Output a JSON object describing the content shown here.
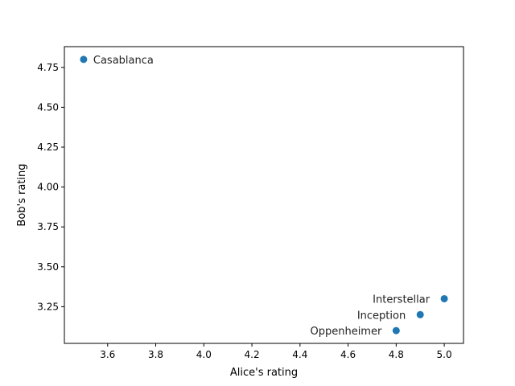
{
  "chart_data": {
    "type": "scatter",
    "xlabel": "Alice's rating",
    "ylabel": "Bob's rating",
    "xlim": [
      3.42,
      5.08
    ],
    "ylim": [
      3.02,
      4.88
    ],
    "xticks": [
      "3.6",
      "3.8",
      "4.0",
      "4.2",
      "4.4",
      "4.6",
      "4.8",
      "5.0"
    ],
    "yticks": [
      "3.25",
      "3.50",
      "3.75",
      "4.00",
      "4.25",
      "4.50",
      "4.75"
    ],
    "grid": false,
    "color": "#1f77b4",
    "points": [
      {
        "label": "Casablanca",
        "x": 3.5,
        "y": 4.8,
        "label_side": "right"
      },
      {
        "label": "Interstellar",
        "x": 5.0,
        "y": 3.3,
        "label_side": "left"
      },
      {
        "label": "Inception",
        "x": 4.9,
        "y": 3.2,
        "label_side": "left"
      },
      {
        "label": "Oppenheimer",
        "x": 4.8,
        "y": 3.1,
        "label_side": "left"
      }
    ]
  }
}
